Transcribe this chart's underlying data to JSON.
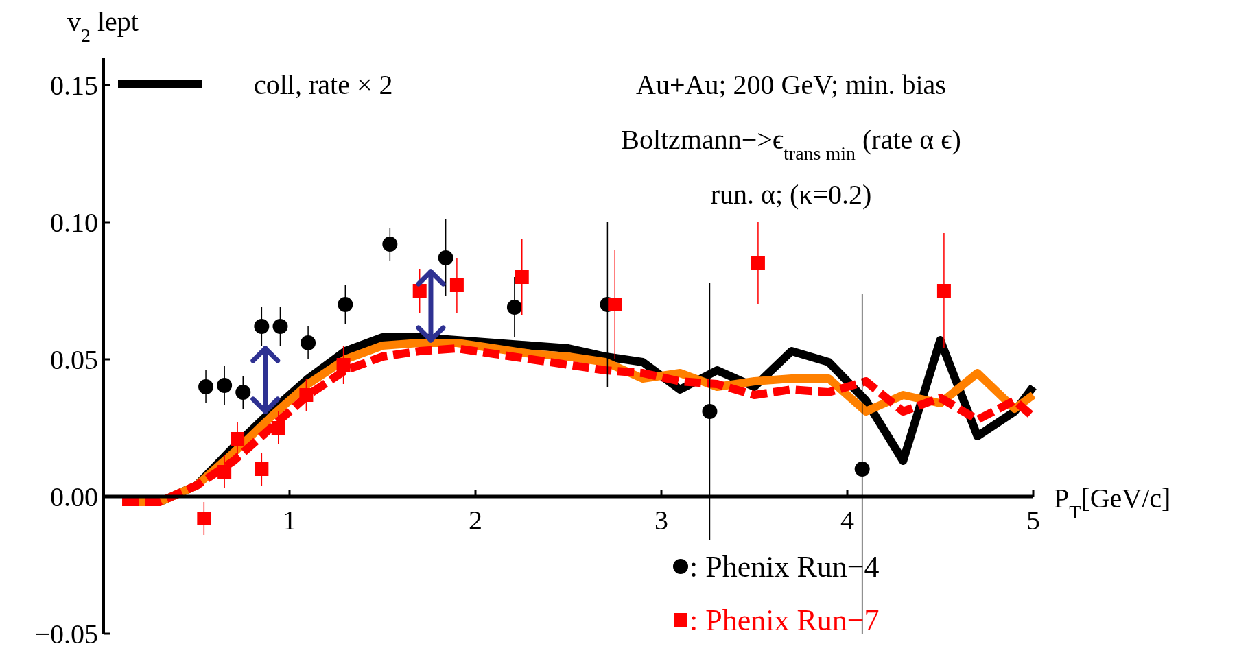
{
  "chart_data": {
    "type": "line",
    "xlabel": "P$_{T}$[GeV/c]",
    "ylabel": "v$_{2}$ lept",
    "annotations": [
      "Au+Au; 200 GeV; min. bias",
      "Boltzmann−>ϵ$_{trans min}$ (rate α ϵ)",
      "run. α; (κ=0.2)"
    ],
    "xlim": [
      0,
      5
    ],
    "ylim": [
      -0.05,
      0.16
    ],
    "xticks": [
      1,
      2,
      3,
      4,
      5
    ],
    "yticks": [
      {
        "value": -0.05,
        "label": "−0.05"
      },
      {
        "value": 0,
        "label": "0.00"
      },
      {
        "value": 0.05,
        "label": "0.05"
      },
      {
        "value": 0.1,
        "label": "0.10"
      },
      {
        "value": 0.15,
        "label": "0.15"
      }
    ],
    "grid": false,
    "legend": "bottom left",
    "series": [
      {
        "name": "coll, rate × 2",
        "color": "#000000",
        "line_style": "solid",
        "x": [
          0.1,
          0.3,
          0.5,
          0.7,
          0.9,
          1.1,
          1.3,
          1.5,
          1.7,
          1.9,
          2.1,
          2.3,
          2.5,
          2.7,
          2.9,
          3.1,
          3.3,
          3.5,
          3.7,
          3.9,
          4.1,
          4.3,
          4.5,
          4.7,
          4.9,
          5.0
        ],
        "values": [
          -0.002,
          -0.002,
          0.004,
          0.018,
          0.031,
          0.043,
          0.053,
          0.058,
          0.058,
          0.057,
          0.056,
          0.055,
          0.054,
          0.051,
          0.049,
          0.039,
          0.046,
          0.04,
          0.053,
          0.049,
          0.035,
          0.013,
          0.057,
          0.022,
          0.031,
          0.04
        ]
      },
      {
        "color": "#ff0000",
        "line_style": "dashed",
        "x": [
          0.1,
          0.3,
          0.5,
          0.7,
          0.9,
          1.1,
          1.3,
          1.5,
          1.7,
          1.9,
          2.1,
          2.3,
          2.5,
          2.7,
          2.9,
          3.1,
          3.3,
          3.5,
          3.7,
          3.9,
          4.1,
          4.3,
          4.5,
          4.7,
          4.9,
          5.0
        ],
        "values": [
          -0.002,
          -0.002,
          0.004,
          0.013,
          0.025,
          0.037,
          0.046,
          0.051,
          0.053,
          0.054,
          0.052,
          0.05,
          0.048,
          0.046,
          0.045,
          0.042,
          0.041,
          0.037,
          0.039,
          0.038,
          0.042,
          0.031,
          0.036,
          0.028,
          0.035,
          0.029
        ]
      },
      {
        "color": "#ff8000",
        "line_style": "solid",
        "x": [
          0.1,
          0.3,
          0.5,
          0.7,
          0.9,
          1.1,
          1.3,
          1.5,
          1.7,
          1.9,
          2.1,
          2.3,
          2.5,
          2.7,
          2.9,
          3.1,
          3.3,
          3.5,
          3.7,
          3.9,
          4.1,
          4.3,
          4.5,
          4.7,
          4.9,
          5.0
        ],
        "values": [
          -0.002,
          -0.002,
          0.004,
          0.016,
          0.029,
          0.041,
          0.05,
          0.055,
          0.056,
          0.056,
          0.054,
          0.052,
          0.051,
          0.049,
          0.043,
          0.045,
          0.04,
          0.042,
          0.043,
          0.043,
          0.031,
          0.037,
          0.034,
          0.045,
          0.032,
          0.037
        ]
      },
      {
        "name": ": Phenix Run−4",
        "type": "scatter",
        "marker": "circle",
        "color": "#000000",
        "x": [
          0.55,
          0.65,
          0.75,
          0.85,
          0.95,
          1.1,
          1.3,
          1.54,
          1.84,
          2.21,
          2.71,
          3.26,
          4.08
        ],
        "values": [
          0.04,
          0.0405,
          0.038,
          0.062,
          0.062,
          0.056,
          0.07,
          0.092,
          0.087,
          0.069,
          0.07,
          0.031,
          0.01
        ],
        "errors": [
          0.006,
          0.007,
          0.006,
          0.007,
          0.007,
          0.006,
          0.007,
          0.006,
          0.014,
          0.011,
          0.03,
          0.047,
          [
            -0.05,
            0.074
          ]
        ]
      },
      {
        "name": ": Phenix Run−7",
        "type": "scatter",
        "marker": "square",
        "color": "#ff0000",
        "x": [
          0.54,
          0.65,
          0.72,
          0.85,
          0.94,
          1.09,
          1.29,
          1.7,
          1.9,
          2.25,
          2.75,
          3.52,
          4.52
        ],
        "values": [
          -0.008,
          0.009,
          0.021,
          0.01,
          0.025,
          0.037,
          0.048,
          0.075,
          0.077,
          0.08,
          0.07,
          0.085,
          0.075
        ],
        "errors": [
          0.006,
          0.006,
          0.006,
          0.006,
          0.006,
          0.006,
          0.007,
          0.008,
          0.01,
          0.014,
          0.02,
          0.015,
          0.021
        ]
      }
    ]
  }
}
